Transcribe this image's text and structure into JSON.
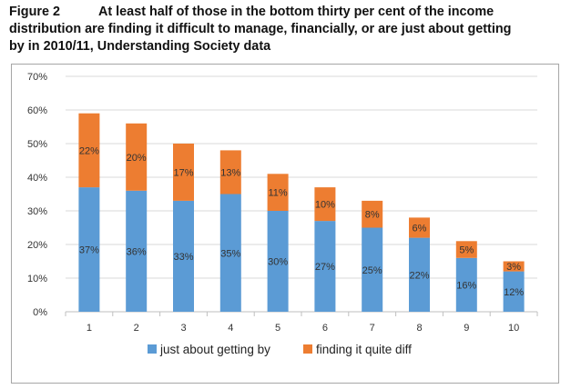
{
  "caption": {
    "figure_label": "Figure 2",
    "line1": "At least half of those in the bottom thirty per cent of the income",
    "line2": "distribution are finding it difficult to manage, financially, or are just about getting",
    "line3": "by in 2010/11, Understanding Society data"
  },
  "chart_data": {
    "type": "bar",
    "stacked": true,
    "categories": [
      "1",
      "2",
      "3",
      "4",
      "5",
      "6",
      "7",
      "8",
      "9",
      "10"
    ],
    "series": [
      {
        "name": "just about getting by",
        "color": "#5b9bd5",
        "values": [
          37,
          36,
          33,
          35,
          30,
          27,
          25,
          22,
          16,
          12
        ],
        "labels": [
          "37%",
          "36%",
          "33%",
          "35%",
          "30%",
          "27%",
          "25%",
          "22%",
          "16%",
          "12%"
        ]
      },
      {
        "name": "finding it quite diff",
        "color": "#ed7d31",
        "values": [
          22,
          20,
          17,
          13,
          11,
          10,
          8,
          6,
          5,
          3
        ],
        "labels": [
          "22%",
          "20%",
          "17%",
          "13%",
          "11%",
          "10%",
          "8%",
          "6%",
          "5%",
          "3%"
        ]
      }
    ],
    "ylim": [
      0,
      70
    ],
    "yticks": [
      "0%",
      "10%",
      "20%",
      "30%",
      "40%",
      "50%",
      "60%",
      "70%"
    ],
    "grid": true,
    "legend_position": "bottom"
  }
}
